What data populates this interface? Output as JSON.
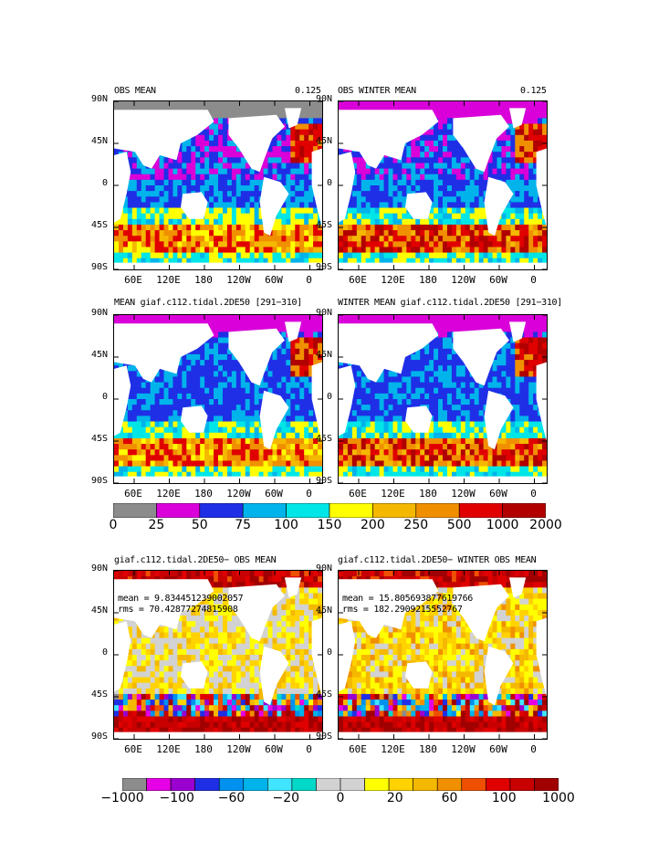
{
  "panels": [
    {
      "title": "OBS MEAN",
      "right_label": "0.125"
    },
    {
      "title": "OBS WINTER MEAN",
      "right_label": "0.125"
    },
    {
      "title": "MEAN giaf.c112.tidal.2DE50 [291−310]",
      "right_label": ""
    },
    {
      "title": "WINTER MEAN giaf.c112.tidal.2DE50 [291−310]",
      "right_label": ""
    },
    {
      "title": "giaf.c112.tidal.2DE50− OBS MEAN",
      "right_label": "",
      "mean": "mean = 9.834451239002057",
      "rms": "rms = 70.42877274815908"
    },
    {
      "title": "giaf.c112.tidal.2DE50− WINTER OBS MEAN",
      "right_label": "",
      "mean": "mean = 15.805693877619766",
      "rms": "rms = 182.2909215552767"
    }
  ],
  "lat_ticks": [
    "90N",
    "45N",
    "0",
    "45S",
    "90S"
  ],
  "lon_ticks": [
    "60E",
    "120E",
    "180",
    "120W",
    "60W",
    "0"
  ],
  "colorbar_top": {
    "colors": [
      "#8c8c8c",
      "#d900d9",
      "#1f2fe6",
      "#00b4eb",
      "#00e6e6",
      "#ffff00",
      "#f5b800",
      "#f09000",
      "#e00000",
      "#b00000"
    ],
    "labels": [
      "0",
      "25",
      "50",
      "75",
      "100",
      "150",
      "200",
      "250",
      "500",
      "1000",
      "2000"
    ]
  },
  "colorbar_bottom": {
    "colors": [
      "#8c8c8c",
      "#e600e6",
      "#9a00d0",
      "#1f2fe6",
      "#0090ee",
      "#00b4eb",
      "#40e6ff",
      "#00d8c8",
      "#d2d2d2",
      "#d2d2d2",
      "#ffff00",
      "#ffd200",
      "#f5b800",
      "#f09000",
      "#ee5000",
      "#e00000",
      "#c80000",
      "#a00000"
    ],
    "labels": [
      "−1000",
      "−100",
      "−60",
      "−20",
      "0",
      "20",
      "60",
      "100",
      "1000"
    ]
  },
  "field_colors": {
    "land": "#ffffff",
    "ice": "#8c8c8c"
  }
}
